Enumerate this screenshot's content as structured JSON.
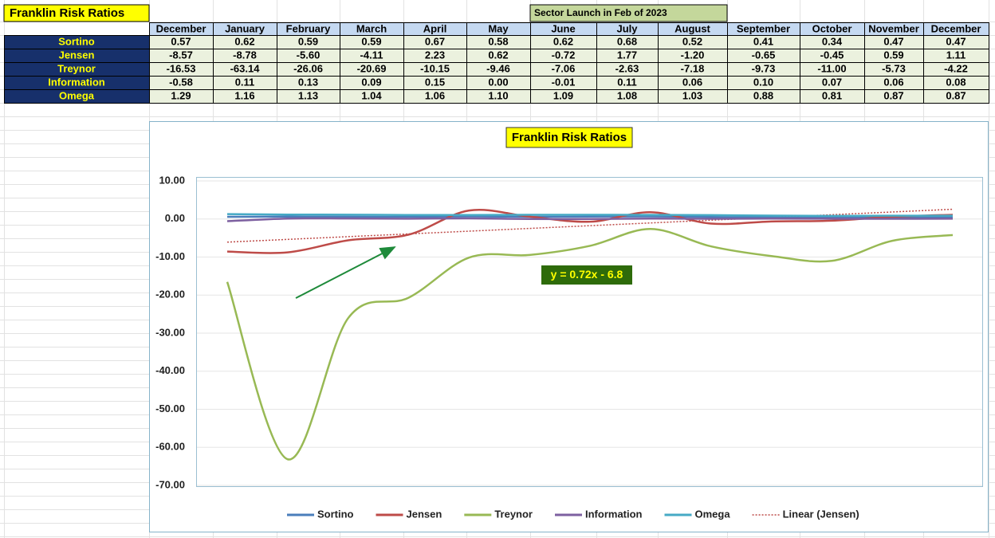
{
  "sheet": {
    "title": "Franklin Risk Ratios",
    "note": "Sector Launch in Feb of 2023",
    "columns": [
      "December",
      "January",
      "February",
      "March",
      "April",
      "May",
      "June",
      "July",
      "August",
      "September",
      "October",
      "November",
      "December"
    ],
    "rows": [
      {
        "label": "Sortino",
        "cells": [
          "0.57",
          "0.62",
          "0.59",
          "0.59",
          "0.67",
          "0.58",
          "0.62",
          "0.68",
          "0.52",
          "0.41",
          "0.34",
          "0.47",
          "0.47"
        ]
      },
      {
        "label": "Jensen",
        "cells": [
          "-8.57",
          "-8.78",
          "-5.60",
          "-4.11",
          "2.23",
          "0.62",
          "-0.72",
          "1.77",
          "-1.20",
          "-0.65",
          "-0.45",
          "0.59",
          "1.11"
        ]
      },
      {
        "label": "Treynor",
        "cells": [
          "-16.53",
          "-63.14",
          "-26.06",
          "-20.69",
          "-10.15",
          "-9.46",
          "-7.06",
          "-2.63",
          "-7.18",
          "-9.73",
          "-11.00",
          "-5.73",
          "-4.22"
        ]
      },
      {
        "label": "Information",
        "cells": [
          "-0.58",
          "0.11",
          "0.13",
          "0.09",
          "0.15",
          "0.00",
          "-0.01",
          "0.11",
          "0.06",
          "0.10",
          "0.07",
          "0.06",
          "0.08"
        ]
      },
      {
        "label": "Omega",
        "cells": [
          "1.29",
          "1.16",
          "1.13",
          "1.04",
          "1.06",
          "1.10",
          "1.09",
          "1.08",
          "1.03",
          "0.88",
          "0.81",
          "0.87",
          "0.87"
        ]
      }
    ]
  },
  "chart_data": {
    "type": "line",
    "title": "Franklin Risk Ratios",
    "smooth": true,
    "grid": true,
    "legend": "bottom",
    "series": [
      {
        "name": "Sortino",
        "color": "#4a7ebb",
        "values": [
          0.57,
          0.62,
          0.59,
          0.59,
          0.67,
          0.58,
          0.62,
          0.68,
          0.52,
          0.41,
          0.34,
          0.47,
          0.47
        ]
      },
      {
        "name": "Jensen",
        "color": "#be4b48",
        "values": [
          -8.57,
          -8.78,
          -5.6,
          -4.11,
          2.23,
          0.62,
          -0.72,
          1.77,
          -1.2,
          -0.65,
          -0.45,
          0.59,
          1.11
        ]
      },
      {
        "name": "Treynor",
        "color": "#98b954",
        "values": [
          -16.53,
          -63.14,
          -26.06,
          -20.69,
          -10.15,
          -9.46,
          -7.06,
          -2.63,
          -7.18,
          -9.73,
          -11.0,
          -5.73,
          -4.22
        ]
      },
      {
        "name": "Information",
        "color": "#7d60a0",
        "values": [
          -0.58,
          0.11,
          0.13,
          0.09,
          0.15,
          0.0,
          -0.01,
          0.11,
          0.06,
          0.1,
          0.07,
          0.06,
          0.08
        ]
      },
      {
        "name": "Omega",
        "color": "#46aac5",
        "values": [
          1.29,
          1.16,
          1.13,
          1.04,
          1.06,
          1.1,
          1.09,
          1.08,
          1.03,
          0.88,
          0.81,
          0.87,
          0.87
        ]
      }
    ],
    "trendline": {
      "name": "Linear (Jensen)",
      "color": "#be4b48",
      "label": "y = 0.72x - 6.8",
      "values": [
        -6.08,
        2.56
      ]
    },
    "ylim": [
      -70,
      10
    ],
    "yticks": [
      {
        "value": 10,
        "label": "10.00"
      },
      {
        "value": 0,
        "label": "0.00"
      },
      {
        "value": -10,
        "label": "-10.00"
      },
      {
        "value": -20,
        "label": "-20.00"
      },
      {
        "value": -30,
        "label": "-30.00"
      },
      {
        "value": -40,
        "label": "-40.00"
      },
      {
        "value": -50,
        "label": "-50.00"
      },
      {
        "value": -60,
        "label": "-60.00"
      },
      {
        "value": -70,
        "label": "-70.00"
      }
    ]
  }
}
